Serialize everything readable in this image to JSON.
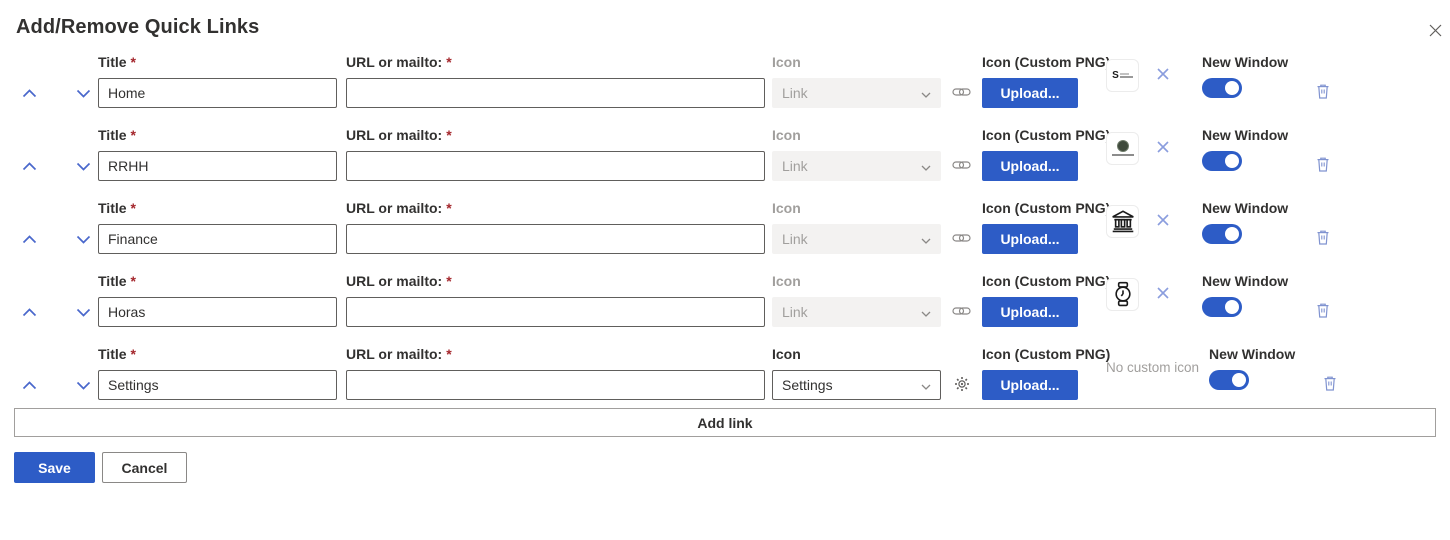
{
  "dialog": {
    "title": "Add/Remove Quick Links"
  },
  "labels": {
    "title_label": "Title",
    "required_mark": "*",
    "url_label": "URL or mailto:",
    "icon_label": "Icon",
    "icon_custom_label": "Icon (Custom PNG)",
    "upload_button": "Upload...",
    "new_window_label": "New Window",
    "no_custom_icon": "No custom icon",
    "add_link_button": "Add link",
    "save_button": "Save",
    "cancel_button": "Cancel"
  },
  "colors": {
    "primary_blue": "#2d5cc6",
    "light_blue_accent": "#8a9dde",
    "required_red": "#a4262c",
    "disabled_gray": "#a19f9d"
  },
  "rows": [
    {
      "title": "Home",
      "url": "",
      "icon_option": "Link",
      "icon_dropdown_disabled": true,
      "adjacent_icon": "link-icon",
      "custom_icon": "s-company-logo",
      "has_custom_icon": true,
      "new_window_on": true
    },
    {
      "title": "RRHH",
      "url": "",
      "icon_option": "Link",
      "icon_dropdown_disabled": true,
      "adjacent_icon": "link-icon",
      "custom_icon": "round-seal-logo",
      "has_custom_icon": true,
      "new_window_on": true
    },
    {
      "title": "Finance",
      "url": "",
      "icon_option": "Link",
      "icon_dropdown_disabled": true,
      "adjacent_icon": "link-icon",
      "custom_icon": "bank-building",
      "has_custom_icon": true,
      "new_window_on": true
    },
    {
      "title": "Horas",
      "url": "",
      "icon_option": "Link",
      "icon_dropdown_disabled": true,
      "adjacent_icon": "link-icon",
      "custom_icon": "wrist-watch",
      "has_custom_icon": true,
      "new_window_on": true
    },
    {
      "title": "Settings",
      "url": "",
      "icon_option": "Settings",
      "icon_dropdown_disabled": false,
      "adjacent_icon": "gear-icon",
      "custom_icon": null,
      "has_custom_icon": false,
      "new_window_on": true
    }
  ]
}
